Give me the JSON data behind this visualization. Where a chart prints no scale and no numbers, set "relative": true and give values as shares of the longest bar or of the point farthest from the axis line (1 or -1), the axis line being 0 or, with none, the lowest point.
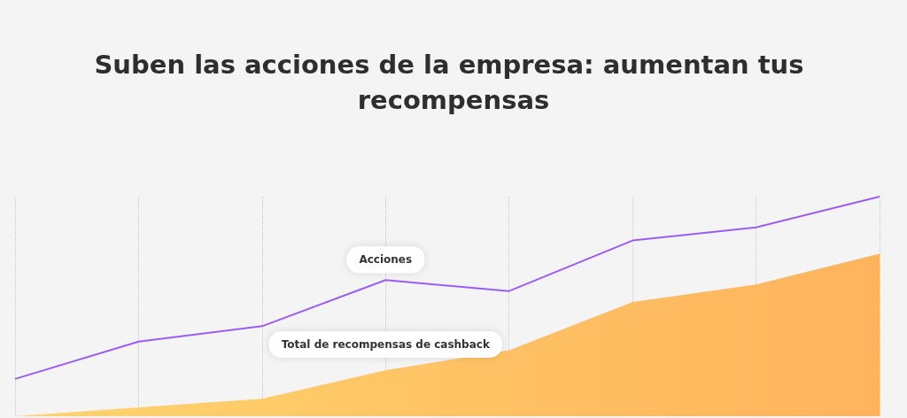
{
  "chart_data": {
    "type": "line",
    "title": "Suben las acciones de la empresa: aumentan tus recompensas",
    "categories": [
      null,
      null,
      null,
      null,
      null,
      null,
      null,
      null
    ],
    "relative": true,
    "grid": "x",
    "series": [
      {
        "name": "Total de recompensas de cashback",
        "type": "area",
        "color": "#ffb35c",
        "values": [
          0,
          0.04,
          0.08,
          0.21,
          0.3,
          0.52,
          0.6,
          0.74
        ]
      },
      {
        "name": "Acciones",
        "type": "line",
        "color": "#9b5cf6",
        "values": [
          0.17,
          0.34,
          0.41,
          0.62,
          0.57,
          0.8,
          0.86,
          1
        ]
      }
    ]
  }
}
